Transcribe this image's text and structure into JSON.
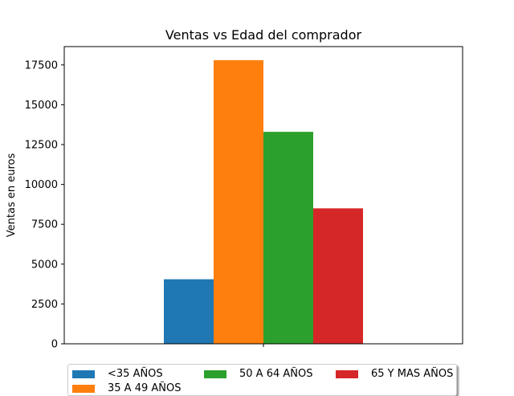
{
  "chart_data": {
    "type": "bar",
    "title": "Ventas vs Edad del comprador",
    "xlabel": "",
    "ylabel": "Ventas en euros",
    "categories": [
      ""
    ],
    "ylim": [
      0,
      18650
    ],
    "yticks": [
      0,
      2500,
      5000,
      7500,
      10000,
      12500,
      15000,
      17500
    ],
    "ytick_labels": [
      "0",
      "2500",
      "5000",
      "7500",
      "10000",
      "12500",
      "15000",
      "17500"
    ],
    "grid": false,
    "legend_position": "bottom-center",
    "series": [
      {
        "name": "<35 AÑOS",
        "values": [
          4050
        ],
        "color": "#1f77b4"
      },
      {
        "name": "35 A 49 AÑOS",
        "values": [
          17800
        ],
        "color": "#ff7f0e"
      },
      {
        "name": "50 A 64 AÑOS",
        "values": [
          13300
        ],
        "color": "#2ca02c"
      },
      {
        "name": "65 Y MAS AÑOS",
        "values": [
          8500
        ],
        "color": "#d62728"
      }
    ]
  }
}
